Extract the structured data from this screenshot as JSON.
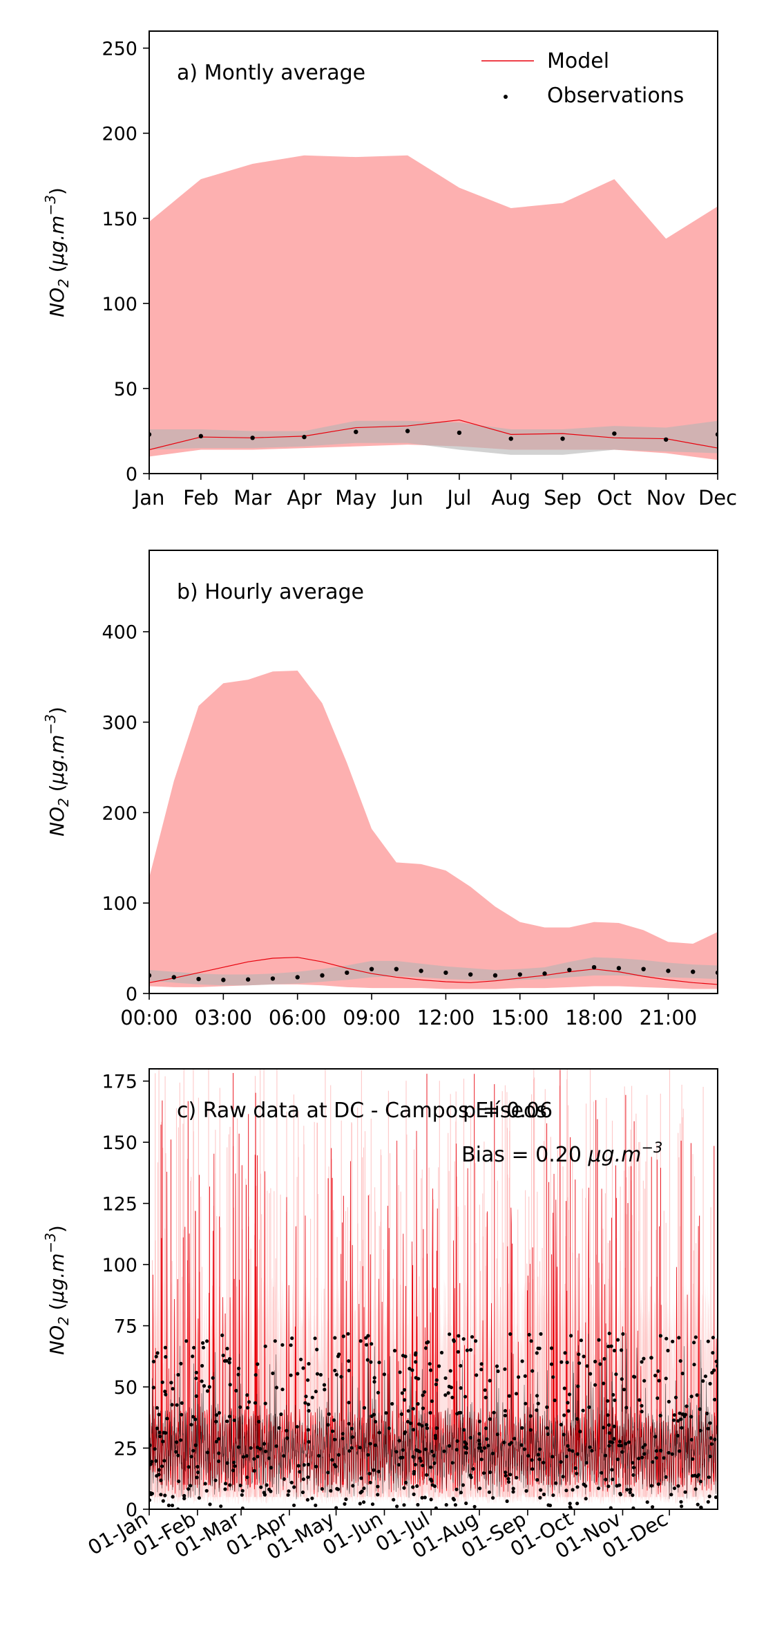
{
  "chart_data": [
    {
      "type": "line",
      "panel_label": "a) Montly average",
      "ylabel": "NO$_2$ ($\\mu g.m^{-3}$)",
      "ylabel_parts": {
        "species": "NO",
        "sub": "2",
        "unit": "μg.m",
        "exp": "−3"
      },
      "categories": [
        "Jan",
        "Feb",
        "Mar",
        "Apr",
        "May",
        "Jun",
        "Jul",
        "Aug",
        "Sep",
        "Oct",
        "Nov",
        "Dec"
      ],
      "x": [
        1,
        2,
        3,
        4,
        5,
        6,
        7,
        8,
        9,
        10,
        11,
        12
      ],
      "ylim": [
        0,
        260
      ],
      "yticks": [
        0,
        50,
        100,
        150,
        200,
        250
      ],
      "legend": {
        "placement": "top-right",
        "model_label": "Model",
        "obs_label": "Observations"
      },
      "series": [
        {
          "name": "Model",
          "kind": "line",
          "color": "#e8000b",
          "values": [
            14,
            21.5,
            21,
            22,
            27,
            28,
            31.5,
            23,
            23.5,
            21,
            20.5,
            15
          ]
        },
        {
          "name": "Observations",
          "kind": "points",
          "color": "#000000",
          "values": [
            23,
            22,
            21,
            21.5,
            24.5,
            25,
            24,
            20.5,
            20.5,
            23.5,
            20,
            23
          ]
        }
      ],
      "bands": [
        {
          "kind": "model-range",
          "color": "#fdb0b0",
          "lower": [
            10,
            14,
            14,
            15,
            16,
            17,
            16,
            14,
            14,
            14,
            12,
            8
          ],
          "upper": [
            148,
            173,
            182,
            187,
            186,
            187,
            168,
            156,
            159,
            173,
            138,
            157
          ]
        },
        {
          "kind": "obs-range",
          "color": "#c8c8c8",
          "lower": [
            14,
            15,
            15,
            16,
            18,
            18,
            14,
            11,
            11,
            14,
            13,
            12
          ],
          "upper": [
            26,
            26,
            25,
            25,
            31,
            31,
            30,
            26,
            26,
            28,
            27,
            31
          ]
        }
      ]
    },
    {
      "type": "line",
      "panel_label": "b) Hourly average",
      "ylabel": "NO$_2$ ($\\mu g.m^{-3}$)",
      "ylabel_parts": {
        "species": "NO",
        "sub": "2",
        "unit": "μg.m",
        "exp": "−3"
      },
      "x": [
        0,
        1,
        2,
        3,
        4,
        5,
        6,
        7,
        8,
        9,
        10,
        11,
        12,
        13,
        14,
        15,
        16,
        17,
        18,
        19,
        20,
        21,
        22,
        23
      ],
      "xticks": [
        "00:00",
        "03:00",
        "06:00",
        "09:00",
        "12:00",
        "15:00",
        "18:00",
        "21:00"
      ],
      "xtick_hours": [
        0,
        3,
        6,
        9,
        12,
        15,
        18,
        21
      ],
      "ylim": [
        0,
        490
      ],
      "yticks": [
        0,
        100,
        200,
        300,
        400
      ],
      "series": [
        {
          "name": "Model",
          "kind": "line",
          "color": "#e8000b",
          "values": [
            12,
            17,
            23,
            29,
            35,
            39,
            40,
            35,
            28,
            22,
            18,
            15,
            13,
            12,
            14,
            17,
            20,
            24,
            27,
            24,
            19,
            15,
            12,
            10
          ]
        },
        {
          "name": "Observations",
          "kind": "points",
          "color": "#000000",
          "values": [
            20,
            18,
            16,
            15,
            15.5,
            16.5,
            18,
            20,
            23,
            27,
            27,
            25,
            23,
            21,
            20,
            21,
            22,
            26,
            29,
            28,
            27,
            25,
            24,
            23
          ]
        }
      ],
      "bands": [
        {
          "kind": "model-range",
          "color": "#fdb0b0",
          "lower": [
            8,
            7,
            7,
            8,
            9,
            10,
            10,
            9,
            7,
            6,
            6,
            6,
            5,
            5,
            5,
            6,
            6,
            7,
            8,
            8,
            7,
            6,
            5,
            5
          ],
          "upper": [
            128,
            235,
            318,
            343,
            347,
            356,
            357,
            321,
            255,
            182,
            145,
            143,
            136,
            118,
            96,
            79,
            73,
            73,
            79,
            78,
            70,
            57,
            55,
            68
          ]
        },
        {
          "kind": "obs-range",
          "color": "#c8c8c8",
          "lower": [
            14,
            12,
            10,
            9,
            9,
            10,
            11,
            13,
            15,
            18,
            19,
            18,
            16,
            15,
            14,
            15,
            16,
            18,
            20,
            20,
            19,
            18,
            17,
            16
          ],
          "upper": [
            26,
            24,
            22,
            21,
            21,
            22,
            24,
            27,
            31,
            36,
            36,
            33,
            30,
            28,
            26,
            27,
            29,
            35,
            40,
            39,
            37,
            34,
            32,
            31
          ]
        }
      ]
    },
    {
      "type": "line",
      "panel_label": "c) Raw data at DC - Campos Elíseos",
      "stat_text_1": "p = 0.06",
      "stat_text_2_prefix": "Bias = 0.20 ",
      "stat_text_2_unit": "μg.m",
      "stat_text_2_exp": "−3",
      "ylabel": "NO$_2$ ($\\mu g.m^{-3}$)",
      "ylabel_parts": {
        "species": "NO",
        "sub": "2",
        "unit": "μg.m",
        "exp": "−3"
      },
      "xticks": [
        "01-Jan",
        "01-Feb",
        "01-Mar",
        "01-Apr",
        "01-May",
        "01-Jun",
        "01-Jul",
        "01-Aug",
        "01-Sep",
        "01-Oct",
        "01-Nov",
        "01-Dec"
      ],
      "xtick_days": [
        0,
        31,
        59,
        90,
        120,
        151,
        181,
        212,
        243,
        273,
        304,
        334
      ],
      "xlim_days": [
        0,
        365
      ],
      "ylim": [
        0,
        180
      ],
      "yticks": [
        0,
        25,
        50,
        75,
        100,
        125,
        150,
        175
      ],
      "series": [
        {
          "name": "Model",
          "kind": "dense-line",
          "color": "#e8000b",
          "typical_range": [
            5,
            40
          ],
          "peak_max": 180
        },
        {
          "name": "Observations",
          "kind": "dense-points",
          "color": "#000000",
          "typical_range": [
            0,
            60
          ],
          "peak_max": 72
        }
      ],
      "bands": [
        {
          "kind": "model-range",
          "color": "#fdb0b0",
          "lower_approx": 3,
          "upper_approx": 180
        }
      ]
    }
  ]
}
